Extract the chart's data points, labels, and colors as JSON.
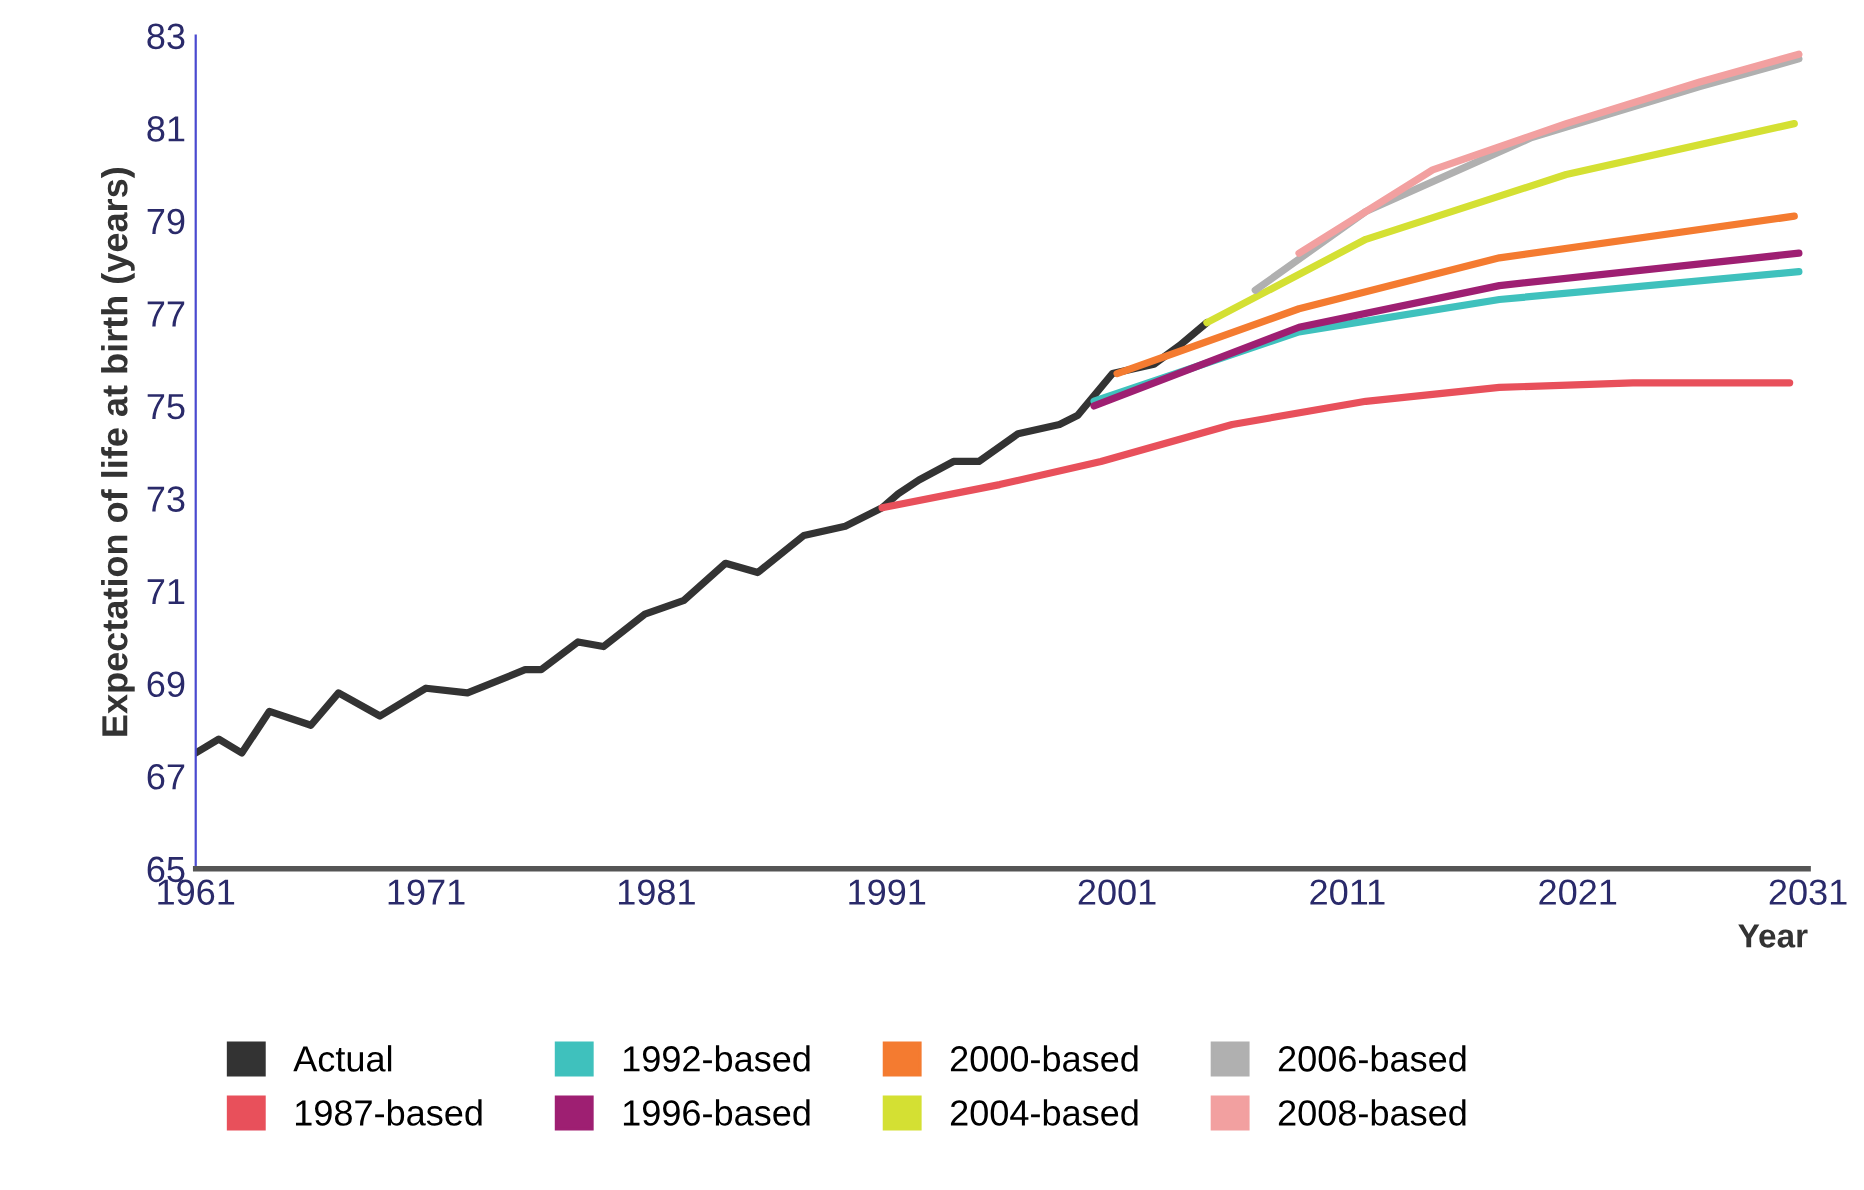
{
  "chart_data": {
    "type": "line",
    "xlabel": "Year",
    "ylabel": "Expectation of life at birth (years)",
    "xlim": [
      1961,
      2031
    ],
    "xticks": [
      1961,
      1971,
      1981,
      1991,
      2001,
      2011,
      2021,
      2031
    ],
    "ylim": [
      65,
      83
    ],
    "yticks": [
      65,
      67,
      69,
      71,
      73,
      75,
      77,
      79,
      81,
      83
    ],
    "grid": false,
    "legend": "bottom",
    "marker": "none",
    "line_style": "solid",
    "series": [
      {
        "name": "Actual",
        "color": "#333333",
        "x": [
          1961,
          1962,
          1963,
          1964.2,
          1966,
          1967.2,
          1969,
          1971,
          1972.8,
          1975.3,
          1976,
          1977.6,
          1978.7,
          1980.5,
          1982.2,
          1984,
          1985.4,
          1987.4,
          1989.2,
          1990.8,
          1991.5,
          1992.4,
          1993.9,
          1995,
          1996.7,
          1998.5,
          1999.3,
          2000.8,
          2002.6,
          2003.7,
          2004.9
        ],
        "values": [
          67.5,
          67.8,
          67.5,
          68.4,
          68.1,
          68.8,
          68.3,
          68.9,
          68.8,
          69.3,
          69.3,
          69.9,
          69.8,
          70.5,
          70.8,
          71.6,
          71.4,
          72.2,
          72.4,
          72.8,
          73.1,
          73.4,
          73.8,
          73.8,
          74.4,
          74.6,
          74.8,
          75.7,
          75.9,
          76.3,
          76.8
        ]
      },
      {
        "name": "1987-based",
        "color": "#e8505b",
        "x": [
          1990.8,
          1995.9,
          2000.3,
          2006,
          2011.8,
          2017.6,
          2023.4,
          2030.2
        ],
        "values": [
          72.8,
          73.3,
          73.8,
          74.6,
          75.1,
          75.4,
          75.5,
          75.5
        ]
      },
      {
        "name": "1992-based",
        "color": "#3fc1bd",
        "x": [
          2000,
          2008.9,
          2017.6,
          2030.6
        ],
        "values": [
          75.1,
          76.6,
          77.3,
          77.9
        ]
      },
      {
        "name": "1996-based",
        "color": "#9e1f72",
        "x": [
          2000,
          2008.9,
          2017.6,
          2030.6
        ],
        "values": [
          75.0,
          76.7,
          77.6,
          78.3
        ]
      },
      {
        "name": "2000-based",
        "color": "#f47b30",
        "x": [
          2001,
          2008.9,
          2017.6,
          2030.4
        ],
        "values": [
          75.7,
          77.1,
          78.2,
          79.1
        ]
      },
      {
        "name": "2004-based",
        "color": "#d4e033",
        "x": [
          2004.9,
          2011.8,
          2020.5,
          2030.4
        ],
        "values": [
          76.8,
          78.6,
          80.0,
          81.1
        ]
      },
      {
        "name": "2006-based",
        "color": "#b0b0b0",
        "x": [
          2007,
          2011.8,
          2019,
          2026.3,
          2030.6
        ],
        "values": [
          77.5,
          79.2,
          80.8,
          81.9,
          82.5
        ]
      },
      {
        "name": "2008-based",
        "color": "#f2a0a0",
        "x": [
          2008.9,
          2014.7,
          2020.5,
          2026.3,
          2030.6
        ],
        "values": [
          78.3,
          80.1,
          81.1,
          82.0,
          82.6
        ]
      }
    ]
  }
}
